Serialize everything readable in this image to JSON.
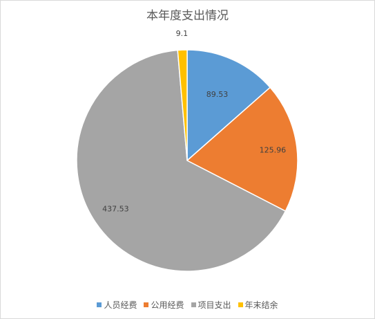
{
  "chart_data": {
    "type": "pie",
    "title": "本年度支出情况",
    "categories": [
      "人员经费",
      "公用经费",
      "项目支出",
      "年末结余"
    ],
    "values": [
      89.53,
      125.96,
      437.53,
      9.1
    ],
    "data_labels": [
      "89.53",
      "125.96",
      "437.53",
      "9.1"
    ],
    "colors": [
      "#5b9bd5",
      "#ed7d31",
      "#a5a5a5",
      "#ffc000"
    ],
    "legend": "bottom",
    "start_angle_deg": 0,
    "direction": "clockwise"
  }
}
